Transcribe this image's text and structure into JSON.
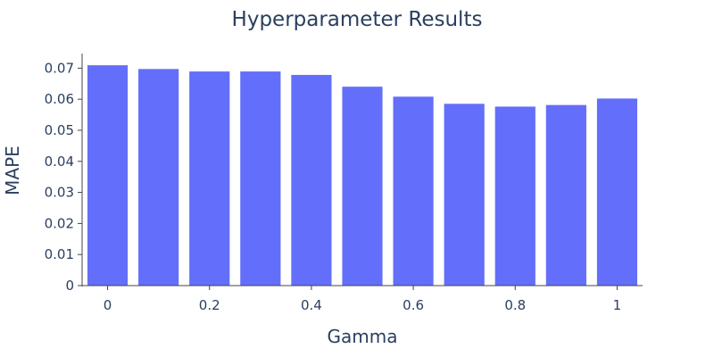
{
  "chart_data": {
    "type": "bar",
    "title": "Hyperparameter Results",
    "xlabel": "Gamma",
    "ylabel": "MAPE",
    "x": [
      0,
      0.1,
      0.2,
      0.3,
      0.4,
      0.5,
      0.6,
      0.7,
      0.8,
      0.9,
      1.0
    ],
    "values": [
      0.071,
      0.0698,
      0.069,
      0.069,
      0.0679,
      0.0641,
      0.0609,
      0.0586,
      0.0577,
      0.0582,
      0.0603
    ],
    "xticks": [
      0,
      0.2,
      0.4,
      0.6,
      0.8,
      1
    ],
    "xtick_labels": [
      "0",
      "0.2",
      "0.4",
      "0.6",
      "0.8",
      "1"
    ],
    "yticks": [
      0,
      0.01,
      0.02,
      0.03,
      0.04,
      0.05,
      0.06,
      0.07
    ],
    "ytick_labels": [
      "0",
      "0.01",
      "0.02",
      "0.03",
      "0.04",
      "0.05",
      "0.06",
      "0.07"
    ],
    "xlim": [
      -0.05,
      1.05
    ],
    "ylim": [
      0,
      0.0747
    ],
    "bar_color": "#636efa",
    "grid": false,
    "legend": "none"
  }
}
